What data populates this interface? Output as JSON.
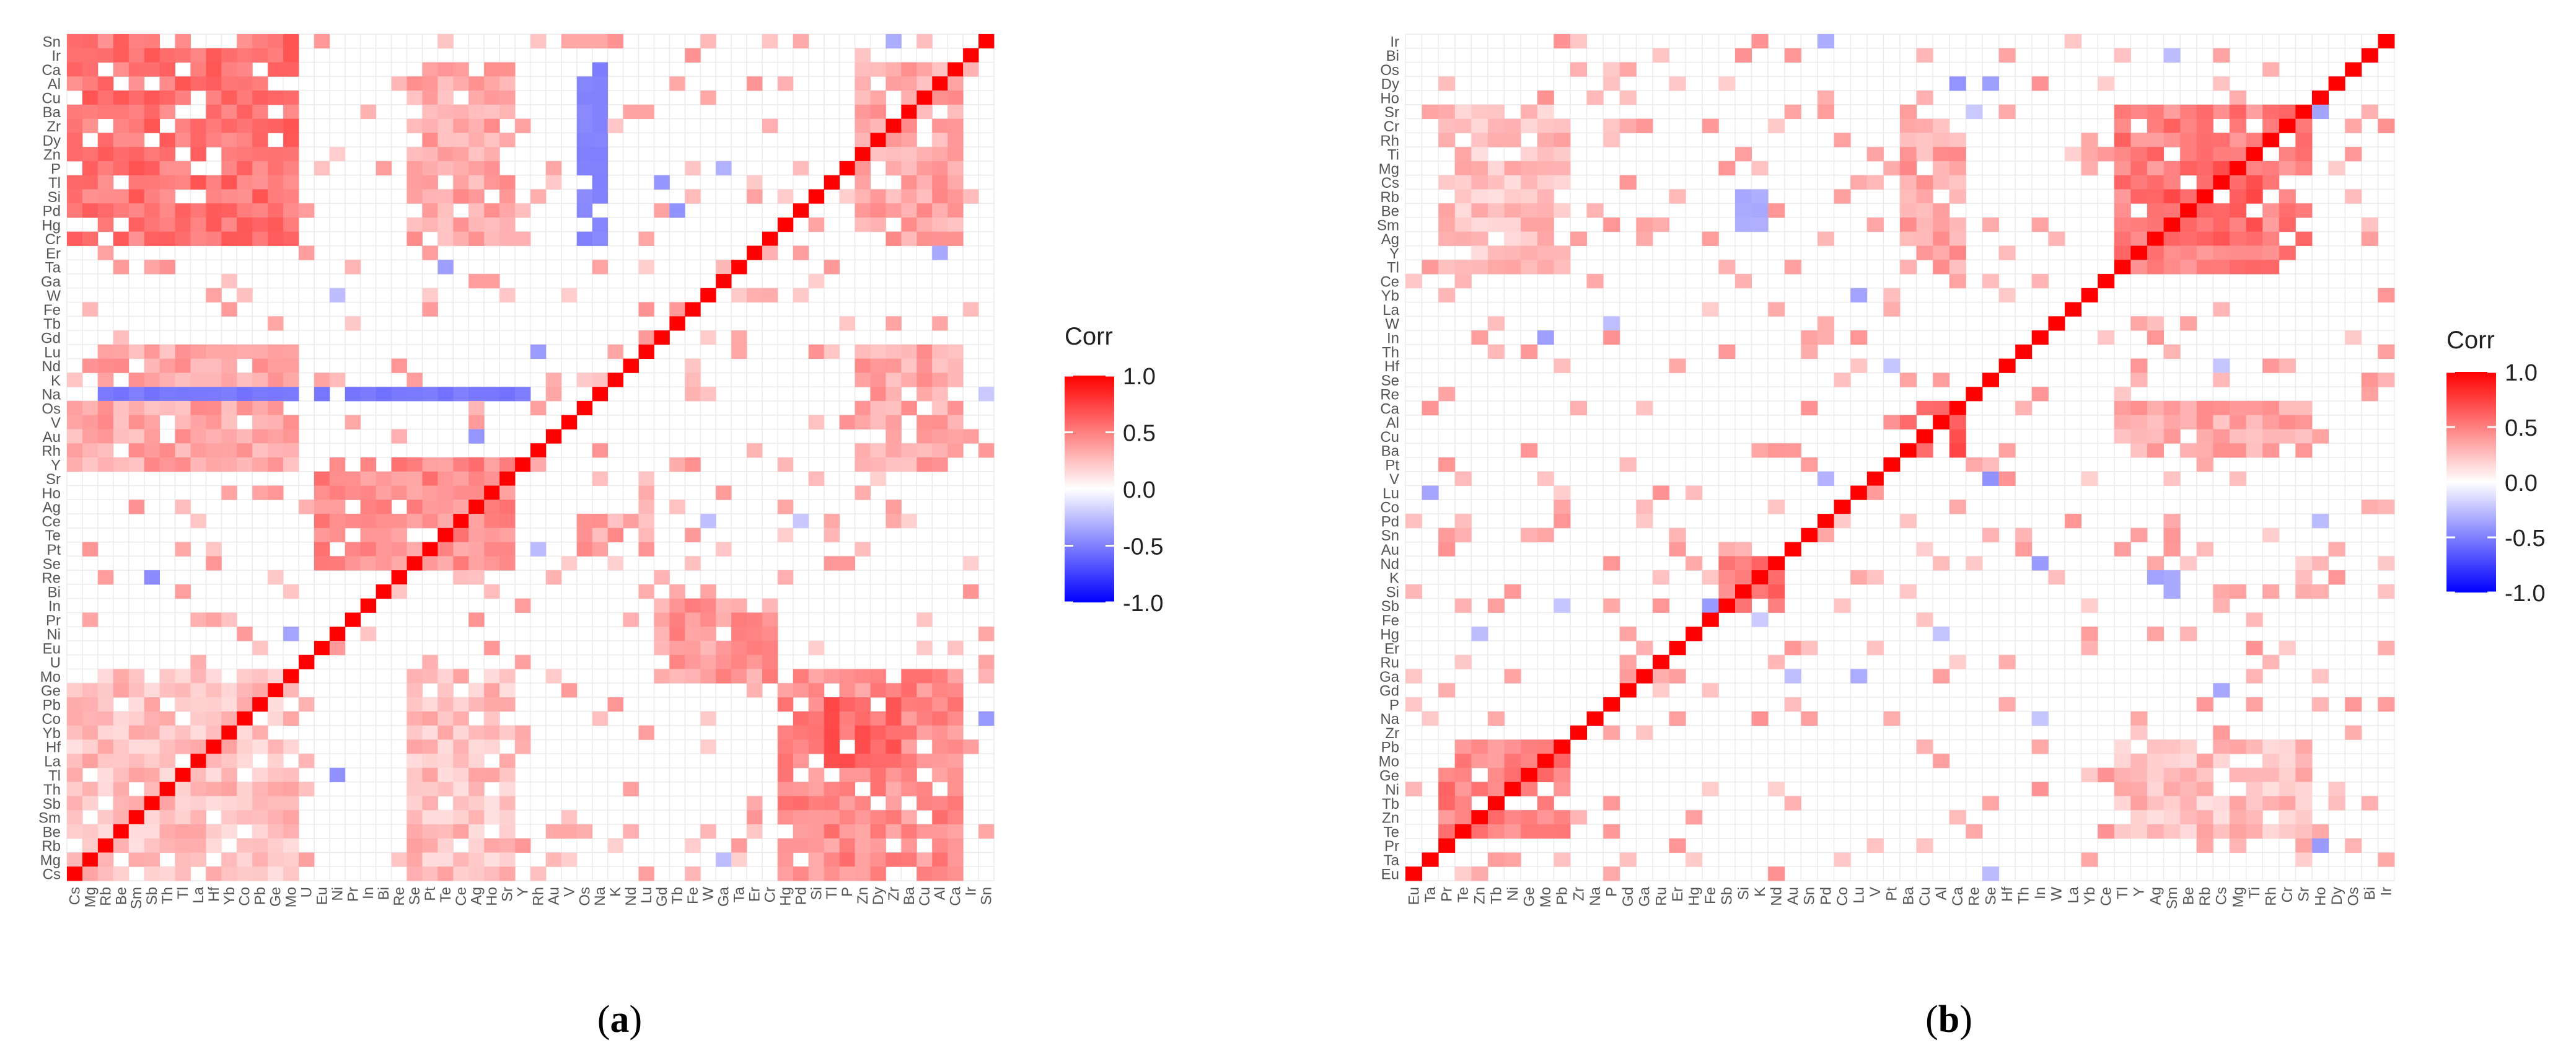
{
  "figure": {
    "colors": {
      "positive": "#ff0000",
      "neutral": "#ffffff",
      "negative": "#0000ff",
      "grid": "#ebebeb"
    }
  },
  "chart_data": [
    {
      "type": "heatmap",
      "panel_label": "a",
      "legend": {
        "title": "Corr",
        "ticks": [
          "1.0",
          "0.5",
          "0.0",
          "-0.5",
          "-1.0"
        ],
        "range": [
          -1,
          1
        ]
      },
      "x_labels": [
        "Cs",
        "Mg",
        "Rb",
        "Be",
        "Sm",
        "Sb",
        "Th",
        "Tl",
        "La",
        "Hf",
        "Yb",
        "Co",
        "Pb",
        "Ge",
        "Mo",
        "U",
        "Eu",
        "Ni",
        "Pr",
        "In",
        "Bi",
        "Re",
        "Se",
        "Pt",
        "Te",
        "Ce",
        "Ag",
        "Ho",
        "Sr",
        "Y",
        "Rh",
        "Au",
        "V",
        "Os",
        "Na",
        "K",
        "Nd",
        "Lu",
        "Gd",
        "Tb",
        "Fe",
        "W",
        "Ga",
        "Ta",
        "Er",
        "Cr",
        "Hg",
        "Pd",
        "Si",
        "Tl",
        "P",
        "Zn",
        "Dy",
        "Zr",
        "Ba",
        "Cu",
        "Al",
        "Ca",
        "Ir",
        "Sn"
      ],
      "y_labels": [
        "Sn",
        "Ir",
        "Ca",
        "Al",
        "Cu",
        "Ba",
        "Zr",
        "Dy",
        "Zn",
        "P",
        "Tl",
        "Si",
        "Pd",
        "Hg",
        "Cr",
        "Er",
        "Ta",
        "Ga",
        "W",
        "Fe",
        "Tb",
        "Gd",
        "Lu",
        "Nd",
        "K",
        "Na",
        "Os",
        "V",
        "Au",
        "Rh",
        "Y",
        "Sr",
        "Ho",
        "Ag",
        "Ce",
        "Te",
        "Pt",
        "Se",
        "Re",
        "Bi",
        "In",
        "Pr",
        "Ni",
        "Eu",
        "U",
        "Mo",
        "Ge",
        "Pb",
        "Co",
        "Yb",
        "Hf",
        "La",
        "Tl",
        "Th",
        "Sb",
        "Sm",
        "Be",
        "Rb",
        "Mg",
        "Cs"
      ],
      "blocks": [
        {
          "rows": [
            0,
            14
          ],
          "cols": [
            0,
            14
          ],
          "value": 0.55
        },
        {
          "rows": [
            30,
            37
          ],
          "cols": [
            16,
            28
          ],
          "value": 0.45
        },
        {
          "rows": [
            45,
            59
          ],
          "cols": [
            46,
            57
          ],
          "value": 0.45
        },
        {
          "rows": [
            47,
            51
          ],
          "cols": [
            49,
            53
          ],
          "value": 0.6
        },
        {
          "rows": [
            40,
            45
          ],
          "cols": [
            38,
            45
          ],
          "value": 0.4
        },
        {
          "rows": [
            34,
            36
          ],
          "cols": [
            33,
            37
          ],
          "value": 0.35
        },
        {
          "rows": [
            2,
            14
          ],
          "cols": [
            22,
            28
          ],
          "value": 0.35
        },
        {
          "rows": [
            2,
            14
          ],
          "cols": [
            51,
            57
          ],
          "value": 0.35
        },
        {
          "rows": [
            22,
            30
          ],
          "cols": [
            0,
            14
          ],
          "value": 0.35
        },
        {
          "rows": [
            22,
            30
          ],
          "cols": [
            51,
            57
          ],
          "value": 0.35
        },
        {
          "rows": [
            45,
            59
          ],
          "cols": [
            0,
            14
          ],
          "value": 0.25
        },
        {
          "rows": [
            45,
            59
          ],
          "cols": [
            22,
            28
          ],
          "value": 0.25
        },
        {
          "rows": [
            2,
            14
          ],
          "cols": [
            33,
            34
          ],
          "value": -0.45
        },
        {
          "rows": [
            25,
            25
          ],
          "cols": [
            0,
            30
          ],
          "value": -0.5
        }
      ]
    },
    {
      "type": "heatmap",
      "panel_label": "b",
      "legend": {
        "title": "Corr",
        "ticks": [
          "1.0",
          "0.5",
          "0.0",
          "-0.5",
          "-1.0"
        ],
        "range": [
          -1,
          1
        ]
      },
      "x_labels": [
        "Eu",
        "Ta",
        "Pr",
        "Te",
        "Zn",
        "Tb",
        "Ni",
        "Ge",
        "Mo",
        "Pb",
        "Zr",
        "Na",
        "P",
        "Gd",
        "Ga",
        "Ru",
        "Er",
        "Hg",
        "Fe",
        "Sb",
        "Si",
        "K",
        "Nd",
        "Au",
        "Sn",
        "Pd",
        "Co",
        "Lu",
        "V",
        "Pt",
        "Ba",
        "Cu",
        "Al",
        "Ca",
        "Re",
        "Se",
        "Hf",
        "Th",
        "In",
        "W",
        "La",
        "Yb",
        "Ce",
        "Tl",
        "Y",
        "Ag",
        "Sm",
        "Be",
        "Rb",
        "Cs",
        "Mg",
        "Ti",
        "Rh",
        "Cr",
        "Sr",
        "Ho",
        "Dy",
        "Os",
        "Bi",
        "Ir"
      ],
      "y_labels": [
        "Ir",
        "Bi",
        "Os",
        "Dy",
        "Ho",
        "Sr",
        "Cr",
        "Rh",
        "Ti",
        "Mg",
        "Cs",
        "Rb",
        "Be",
        "Sm",
        "Ag",
        "Y",
        "Tl",
        "Ce",
        "Yb",
        "La",
        "W",
        "In",
        "Th",
        "Hf",
        "Se",
        "Re",
        "Ca",
        "Al",
        "Cu",
        "Ba",
        "Pt",
        "V",
        "Lu",
        "Co",
        "Pd",
        "Sn",
        "Au",
        "Nd",
        "K",
        "Si",
        "Sb",
        "Fe",
        "Hg",
        "Er",
        "Ru",
        "Ga",
        "Gd",
        "P",
        "Na",
        "Zr",
        "Pb",
        "Mo",
        "Ge",
        "Ni",
        "Tb",
        "Zn",
        "Te",
        "Pr",
        "Ta",
        "Eu"
      ],
      "blocks": [
        {
          "rows": [
            5,
            16
          ],
          "cols": [
            43,
            54
          ],
          "value": 0.5
        },
        {
          "rows": [
            9,
            14
          ],
          "cols": [
            46,
            51
          ],
          "value": 0.6
        },
        {
          "rows": [
            26,
            29
          ],
          "cols": [
            30,
            33
          ],
          "value": 0.65
        },
        {
          "rows": [
            37,
            40
          ],
          "cols": [
            19,
            22
          ],
          "value": 0.55
        },
        {
          "rows": [
            50,
            56
          ],
          "cols": [
            2,
            9
          ],
          "value": 0.5
        },
        {
          "rows": [
            26,
            29
          ],
          "cols": [
            43,
            54
          ],
          "value": 0.35
        },
        {
          "rows": [
            5,
            16
          ],
          "cols": [
            30,
            33
          ],
          "value": 0.35
        },
        {
          "rows": [
            5,
            16
          ],
          "cols": [
            2,
            9
          ],
          "value": 0.25
        },
        {
          "rows": [
            50,
            56
          ],
          "cols": [
            43,
            54
          ],
          "value": 0.25
        },
        {
          "rows": [
            11,
            13
          ],
          "cols": [
            20,
            21
          ],
          "value": -0.3
        },
        {
          "rows": [
            38,
            39
          ],
          "cols": [
            45,
            46
          ],
          "value": -0.3
        }
      ]
    }
  ]
}
